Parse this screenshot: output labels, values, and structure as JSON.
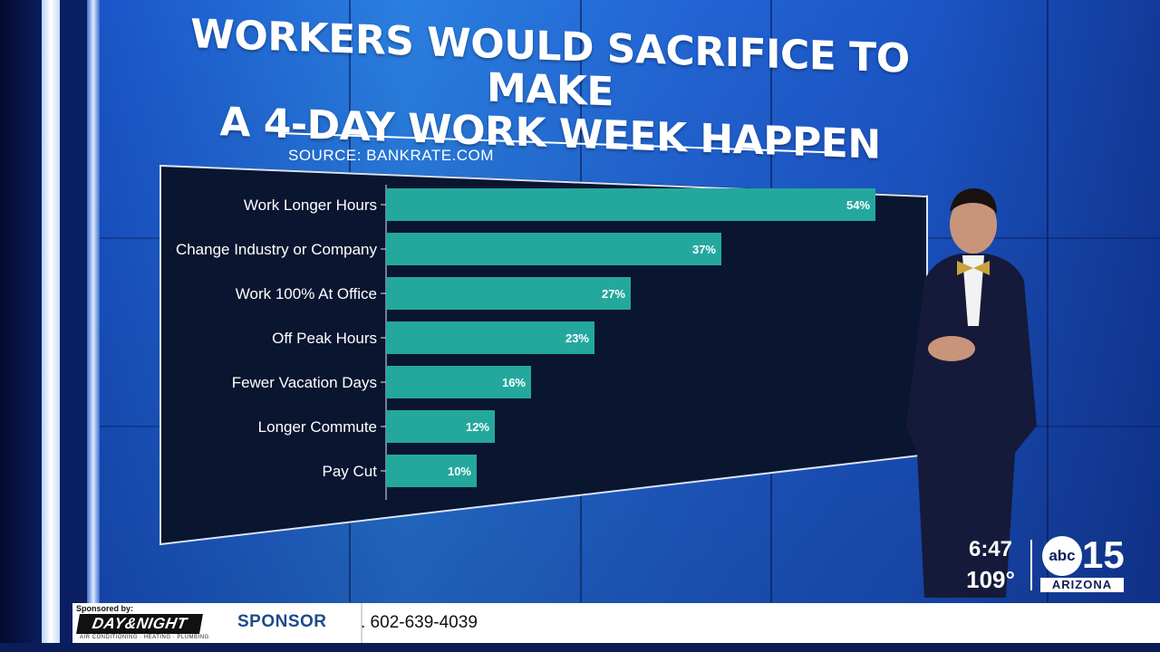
{
  "title_lines": [
    "WORKERS WOULD SACRIFICE TO MAKE",
    "A 4-DAY WORK WEEK HAPPEN"
  ],
  "source": "SOURCE: BANKRATE.COM",
  "chart_data": {
    "type": "bar",
    "orientation": "horizontal",
    "title": "WORKERS WOULD SACRIFICE TO MAKE A 4-DAY WORK WEEK HAPPEN",
    "categories": [
      "Work Longer Hours",
      "Change Industry or Company",
      "Work 100% At Office",
      "Off Peak Hours",
      "Fewer Vacation Days",
      "Longer Commute",
      "Pay Cut"
    ],
    "values": [
      54,
      37,
      27,
      23,
      16,
      12,
      10
    ],
    "value_labels": [
      "54%",
      "37%",
      "27%",
      "23%",
      "16%",
      "12%",
      "10%"
    ],
    "unit": "%",
    "xlim": [
      0,
      60
    ],
    "bar_color": "#24a89e",
    "background_color": "#0a1530",
    "grid": false,
    "legend": "none"
  },
  "clock": {
    "time": "6:47",
    "temperature": "109°"
  },
  "station": {
    "network": "abc",
    "channel": "15",
    "name": "ARIZONA"
  },
  "ticker": {
    "sponsored_by": "Sponsored by:",
    "sponsor_name": "DAY&NIGHT",
    "sponsor_tagline": "AIR CONDITIONING · HEATING · PLUMBING",
    "label": "SPONSOR",
    "phone": ". 602-639-4039"
  }
}
